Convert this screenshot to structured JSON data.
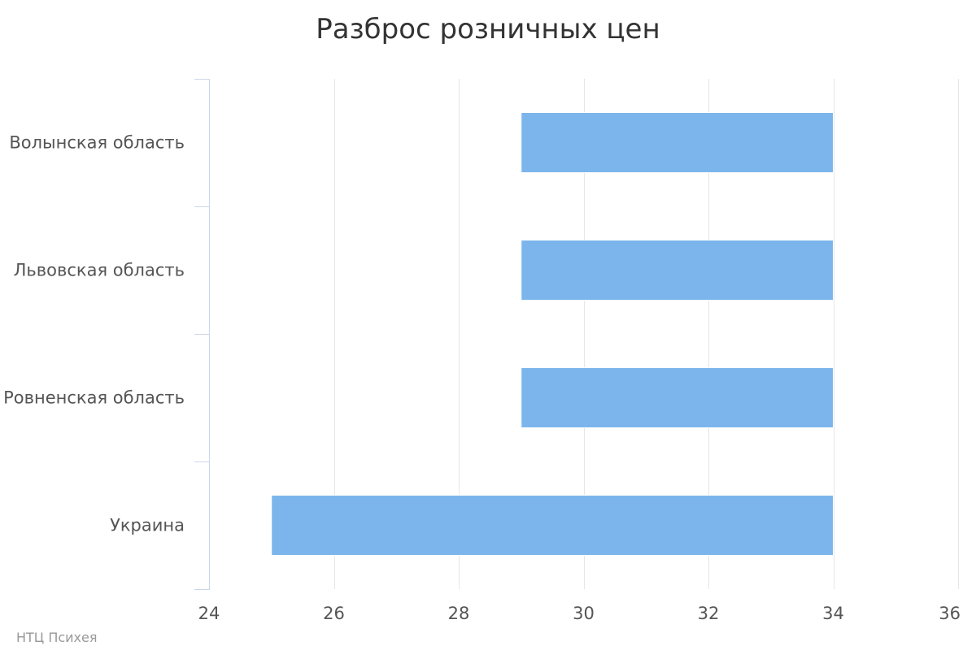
{
  "chart_data": {
    "type": "bar",
    "orientation": "horizontal",
    "title": "Разброс розничных цен",
    "categories": [
      "Волынская область",
      "Львовская область",
      "Ровненская область",
      "Украина"
    ],
    "series": [
      {
        "low": [
          29,
          29,
          29,
          25
        ],
        "high": [
          34,
          34,
          34,
          34
        ]
      }
    ],
    "xlim": [
      24,
      36
    ],
    "xticks": [
      24,
      26,
      28,
      30,
      32,
      34,
      36
    ],
    "grid": true,
    "legend": "none",
    "colors": {
      "bar": "#7cb5ec",
      "grid": "#e6e6e6",
      "axis": "#ccd6eb"
    }
  },
  "credits": "НТЦ Психея"
}
